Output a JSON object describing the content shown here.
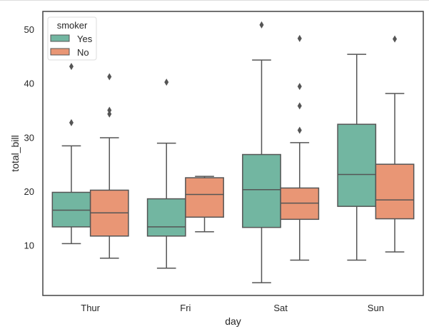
{
  "chart_data": {
    "type": "box",
    "xlabel": "day",
    "ylabel": "total_bill",
    "categories": [
      "Thur",
      "Fri",
      "Sat",
      "Sun"
    ],
    "ylim": [
      0.7,
      53.3
    ],
    "yticks": [
      10,
      20,
      30,
      40,
      50
    ],
    "grid": false,
    "legend": {
      "title": "smoker",
      "placement": "top-left"
    },
    "series": [
      {
        "name": "Yes",
        "color": "#72b6a1",
        "boxes": [
          {
            "whislo": 10.3,
            "q1": 13.4,
            "med": 16.5,
            "q3": 19.8,
            "whishi": 28.4,
            "fliers": [
              43.1,
              32.7
            ]
          },
          {
            "whislo": 5.75,
            "q1": 11.7,
            "med": 13.4,
            "q3": 18.6,
            "whishi": 28.9,
            "fliers": [
              40.2
            ]
          },
          {
            "whislo": 3.07,
            "q1": 13.3,
            "med": 20.3,
            "q3": 26.8,
            "whishi": 44.3,
            "fliers": [
              50.8
            ]
          },
          {
            "whislo": 7.25,
            "q1": 17.2,
            "med": 23.1,
            "q3": 32.4,
            "whishi": 45.35,
            "fliers": []
          }
        ]
      },
      {
        "name": "No",
        "color": "#e99675",
        "boxes": [
          {
            "whislo": 7.6,
            "q1": 11.7,
            "med": 16.0,
            "q3": 20.2,
            "whishi": 29.9,
            "fliers": [
              41.2,
              35.0,
              34.3
            ]
          },
          {
            "whislo": 12.5,
            "q1": 15.2,
            "med": 19.4,
            "q3": 22.5,
            "whishi": 22.75,
            "fliers": []
          },
          {
            "whislo": 7.25,
            "q1": 14.8,
            "med": 17.8,
            "q3": 20.6,
            "whishi": 29.0,
            "fliers": [
              48.3,
              39.4,
              35.8,
              31.3
            ]
          },
          {
            "whislo": 8.77,
            "q1": 14.9,
            "med": 18.4,
            "q3": 25.0,
            "whishi": 38.1,
            "fliers": [
              48.2
            ]
          }
        ]
      }
    ]
  }
}
